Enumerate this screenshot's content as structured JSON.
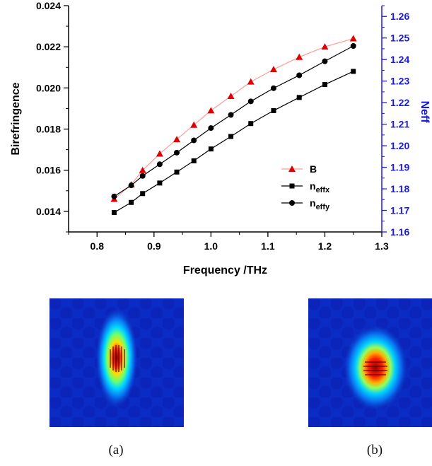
{
  "chart_data": {
    "type": "line",
    "xlabel": "Frequency /THz",
    "ylabel_left": "Birefringence",
    "ylabel_right": "Neff",
    "xlim": [
      0.75,
      1.3
    ],
    "ylim_left": [
      0.013,
      0.024
    ],
    "ylim_right": [
      1.16,
      1.265
    ],
    "x_ticks": [
      "0.8",
      "0.9",
      "1.0",
      "1.1",
      "1.2",
      "1.3"
    ],
    "y_ticks_left": [
      "0.014",
      "0.016",
      "0.018",
      "0.020",
      "0.022",
      "0.024"
    ],
    "y_ticks_right": [
      "1.16",
      "1.17",
      "1.18",
      "1.19",
      "1.20",
      "1.21",
      "1.22",
      "1.23",
      "1.24",
      "1.25",
      "1.26"
    ],
    "legend_position": "center-right",
    "series": [
      {
        "name": "B",
        "axis": "left",
        "color": "#e00000",
        "line_color": "#ff9a9a",
        "marker": "triangle",
        "x": [
          0.83,
          0.86,
          0.88,
          0.91,
          0.94,
          0.97,
          1.0,
          1.035,
          1.07,
          1.11,
          1.155,
          1.2,
          1.25
        ],
        "values": [
          0.0146,
          0.0153,
          0.016,
          0.0168,
          0.0175,
          0.0182,
          0.0189,
          0.0196,
          0.0203,
          0.0209,
          0.0215,
          0.022,
          0.0224
        ]
      },
      {
        "name": "n_effx",
        "axis": "right",
        "color": "#000000",
        "line_color": "#000000",
        "marker": "square",
        "x": [
          0.83,
          0.86,
          0.88,
          0.91,
          0.94,
          0.97,
          1.0,
          1.035,
          1.07,
          1.11,
          1.155,
          1.2,
          1.25
        ],
        "values": [
          1.169,
          1.1737,
          1.1778,
          1.1827,
          1.1878,
          1.193,
          1.1985,
          1.2043,
          1.2103,
          1.2163,
          1.2224,
          1.2284,
          1.2345
        ]
      },
      {
        "name": "n_effy",
        "axis": "right",
        "color": "#000000",
        "line_color": "#000000",
        "marker": "circle",
        "x": [
          0.83,
          0.86,
          0.88,
          0.91,
          0.94,
          0.97,
          1.0,
          1.035,
          1.07,
          1.11,
          1.155,
          1.2,
          1.25
        ],
        "values": [
          1.1765,
          1.1816,
          1.186,
          1.1914,
          1.1968,
          1.2025,
          1.2082,
          1.2143,
          1.2206,
          1.2267,
          1.2327,
          1.2392,
          1.2463
        ]
      }
    ],
    "legend": [
      {
        "key": "B",
        "label": "B",
        "sub": ""
      },
      {
        "key": "n_effx",
        "label": "n",
        "sub": "effx"
      },
      {
        "key": "n_effy",
        "label": "n",
        "sub": "effy"
      }
    ],
    "colors": {
      "right_axis": "#1a1ae6",
      "left_axis": "#000000"
    }
  },
  "figures": [
    {
      "caption": "(a)",
      "mode": "x-polarized core mode, vertically elongated"
    },
    {
      "caption": "(b)",
      "mode": "y-polarized core mode, round"
    }
  ]
}
